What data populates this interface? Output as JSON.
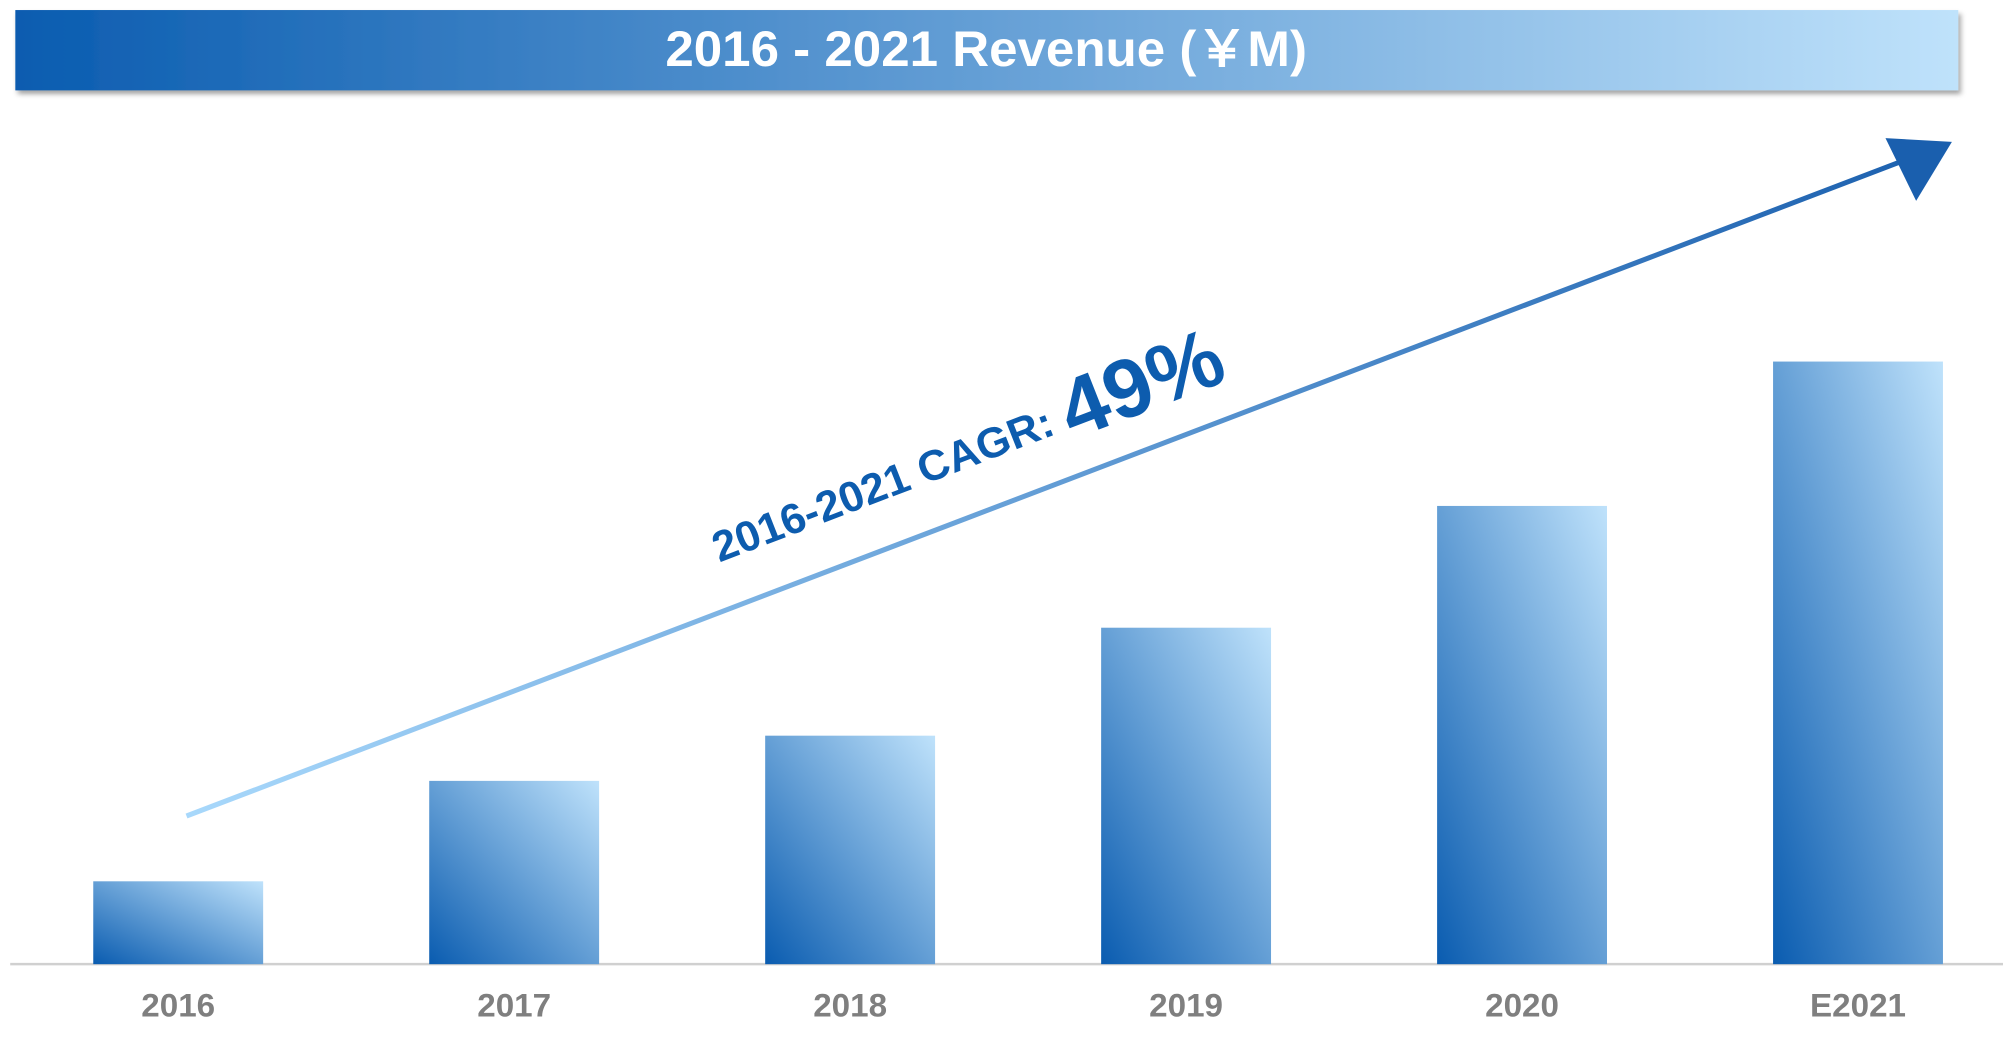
{
  "chart_data": {
    "type": "bar",
    "title": "2016 - 2021 Revenue (￥M)",
    "categories": [
      "2016",
      "2017",
      "2018",
      "2019",
      "2020",
      "E2021"
    ],
    "values": [
      66,
      146,
      182,
      268,
      365,
      480
    ],
    "colors": [
      "#0a5cb0",
      "#bfe2fb"
    ],
    "ylim": [
      0,
      670
    ],
    "annotation": {
      "text": "2016-2021 CAGR:",
      "highlight": "49%"
    }
  }
}
